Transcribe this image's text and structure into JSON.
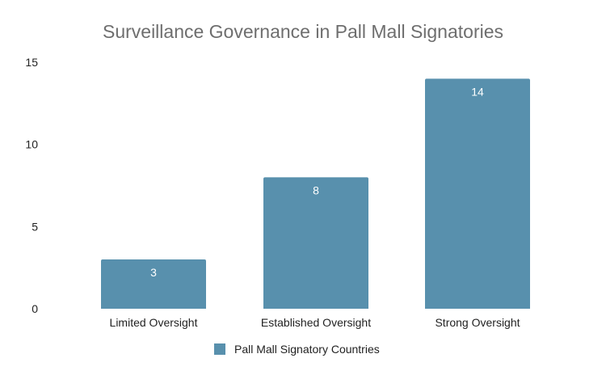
{
  "chart_data": {
    "type": "bar",
    "title": "Surveillance Governance in Pall Mall Signatories",
    "categories": [
      "Limited Oversight",
      "Established Oversight",
      "Strong Oversight"
    ],
    "series": [
      {
        "name": "Pall Mall Signatory Countries",
        "values": [
          3,
          8,
          14
        ],
        "color": "#5890ad"
      }
    ],
    "xlabel": "",
    "ylabel": "",
    "ylim": [
      0,
      15
    ],
    "yticks": [
      0,
      5,
      10,
      15
    ],
    "grid": false,
    "legend_position": "bottom"
  }
}
